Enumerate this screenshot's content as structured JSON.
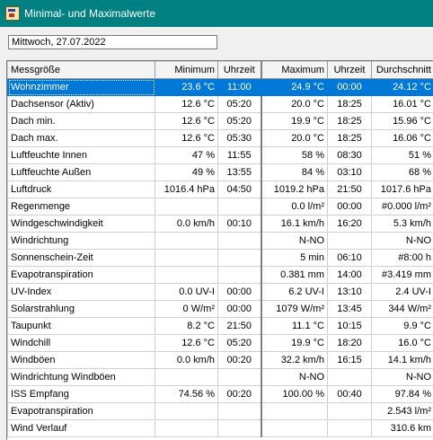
{
  "window": {
    "title": "Minimal- und Maximalwerte",
    "icon": "weather-station-icon"
  },
  "date_field": {
    "value": "Mittwoch, 27.07.2022"
  },
  "table": {
    "headers": {
      "name": "Messgröße",
      "min": "Minimum",
      "min_time": "Uhrzeit",
      "max": "Maximum",
      "max_time": "Uhrzeit",
      "avg": "Durchschnitt"
    },
    "selected_row": 0,
    "rows": [
      {
        "name": "Wohnzimmer",
        "min": "23.6 °C",
        "min_time": "11:00",
        "max": "24.9 °C",
        "max_time": "00:00",
        "avg": "24.12 °C"
      },
      {
        "name": "Dachsensor (Aktiv)",
        "min": "12.6 °C",
        "min_time": "05:20",
        "max": "20.0 °C",
        "max_time": "18:25",
        "avg": "16.01 °C"
      },
      {
        "name": "Dach min.",
        "min": "12.6 °C",
        "min_time": "05:20",
        "max": "19.9 °C",
        "max_time": "18:25",
        "avg": "15.96 °C"
      },
      {
        "name": "Dach max.",
        "min": "12.6 °C",
        "min_time": "05:30",
        "max": "20.0 °C",
        "max_time": "18:25",
        "avg": "16.06 °C"
      },
      {
        "name": "Luftfeuchte Innen",
        "min": "47 %",
        "min_time": "11:55",
        "max": "58 %",
        "max_time": "08:30",
        "avg": "51 %"
      },
      {
        "name": "Luftfeuchte Außen",
        "min": "49 %",
        "min_time": "13:55",
        "max": "84 %",
        "max_time": "03:10",
        "avg": "68 %"
      },
      {
        "name": "Luftdruck",
        "min": "1016.4 hPa",
        "min_time": "04:50",
        "max": "1019.2 hPa",
        "max_time": "21:50",
        "avg": "1017.6 hPa"
      },
      {
        "name": "Regenmenge",
        "min": "",
        "min_time": "",
        "max": "0.0 l/m²",
        "max_time": "00:00",
        "avg": "#0.000 l/m²"
      },
      {
        "name": "Windgeschwindigkeit",
        "min": "0.0 km/h",
        "min_time": "00:10",
        "max": "16.1 km/h",
        "max_time": "16:20",
        "avg": "5.3 km/h"
      },
      {
        "name": "Windrichtung",
        "min": "",
        "min_time": "",
        "max": "N-NO",
        "max_time": "",
        "avg": "N-NO"
      },
      {
        "name": "Sonnenschein-Zeit",
        "min": "",
        "min_time": "",
        "max": "5 min",
        "max_time": "06:10",
        "avg": "#8:00 h"
      },
      {
        "name": "Evapotranspiration",
        "min": "",
        "min_time": "",
        "max": "0.381 mm",
        "max_time": "14:00",
        "avg": "#3.419 mm"
      },
      {
        "name": "UV-Index",
        "min": "0.0 UV-I",
        "min_time": "00:00",
        "max": "6.2 UV-I",
        "max_time": "13:10",
        "avg": "2.4 UV-I"
      },
      {
        "name": "Solarstrahlung",
        "min": "0 W/m²",
        "min_time": "00:00",
        "max": "1079 W/m²",
        "max_time": "13:45",
        "avg": "344 W/m²"
      },
      {
        "name": "Taupunkt",
        "min": "8.2 °C",
        "min_time": "21:50",
        "max": "11.1 °C",
        "max_time": "10:15",
        "avg": "9.9 °C"
      },
      {
        "name": "Windchill",
        "min": "12.6 °C",
        "min_time": "05:20",
        "max": "19.9 °C",
        "max_time": "18:20",
        "avg": "16.0 °C"
      },
      {
        "name": "Windböen",
        "min": "0.0 km/h",
        "min_time": "00:20",
        "max": "32.2 km/h",
        "max_time": "16:15",
        "avg": "14.1 km/h"
      },
      {
        "name": "Windrichtung Windböen",
        "min": "",
        "min_time": "",
        "max": "N-NO",
        "max_time": "",
        "avg": "N-NO"
      },
      {
        "name": "ISS Empfang",
        "min": "74.56 %",
        "min_time": "00:20",
        "max": "100.00 %",
        "max_time": "00:40",
        "avg": "97.84 %"
      },
      {
        "name": "Evapotranspiration",
        "min": "",
        "min_time": "",
        "max": "",
        "max_time": "",
        "avg": "2.543 l/m²"
      },
      {
        "name": "Wind Verlauf",
        "min": "",
        "min_time": "",
        "max": "",
        "max_time": "",
        "avg": "310.6 km"
      }
    ]
  },
  "colors": {
    "titlebar": "#008080",
    "selection": "#0078d7",
    "background": "#f0f0f0"
  }
}
